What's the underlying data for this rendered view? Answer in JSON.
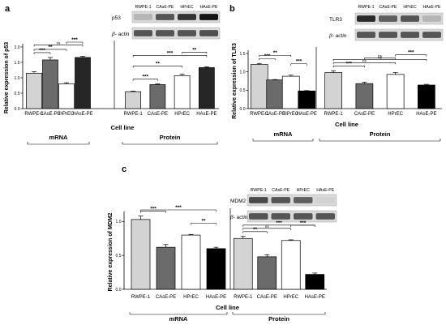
{
  "panel_labels": [
    "a",
    "b",
    "c"
  ],
  "blots": [
    {
      "lanes": [
        "RWPE-1",
        "CAsE-PE",
        "HPrEC",
        "HAsE-PE"
      ],
      "rows": [
        {
          "label": "p53",
          "intensity": [
            0.25,
            0.7,
            0.85,
            1.0
          ]
        },
        {
          "label": "β- actin",
          "intensity": [
            0.7,
            0.7,
            0.7,
            0.72
          ]
        }
      ]
    },
    {
      "lanes": [
        "RWPE-1",
        "CAsE-PE",
        "HPrEC",
        "HAsE-PE"
      ],
      "rows": [
        {
          "label": "TLR3",
          "intensity": [
            0.9,
            0.65,
            0.7,
            0.25
          ]
        },
        {
          "label": "β- actin",
          "intensity": [
            0.7,
            0.7,
            0.7,
            0.7
          ]
        }
      ]
    },
    {
      "lanes": [
        "RWPE-1",
        "CAsE-PE",
        "HPrEC",
        "HAsE-PE"
      ],
      "rows": [
        {
          "label": "MDM2",
          "intensity": [
            0.75,
            0.7,
            0.65,
            0.12
          ]
        },
        {
          "label": "β- actin",
          "intensity": [
            0.7,
            0.7,
            0.7,
            0.7
          ]
        }
      ]
    }
  ],
  "chart_data": [
    {
      "type": "bar",
      "title": "",
      "ylabel": "Relative expression of p53",
      "xlabel": "Cell line",
      "ylim": [
        0,
        2.0
      ],
      "yticks": [
        0.0,
        0.5,
        1.0,
        1.5,
        2.0
      ],
      "groups": [
        {
          "name": "mRNA",
          "categories": [
            "RWPE-1",
            "CAsE-PE",
            "HPrEC",
            "HAsE-PE"
          ],
          "values": [
            1.15,
            1.58,
            0.8,
            1.66
          ],
          "errors": [
            0.05,
            0.08,
            0.04,
            0.04
          ],
          "colors": [
            "#d3d3d3",
            "#6b6b6b",
            "#ffffff",
            "#262626"
          ],
          "sig": [
            {
              "from": 0,
              "to": 1,
              "label": "***"
            },
            {
              "from": 0,
              "to": 2,
              "label": "**"
            },
            {
              "from": 0,
              "to": 3,
              "label": "ns"
            },
            {
              "from": 2,
              "to": 3,
              "label": "***"
            }
          ]
        },
        {
          "name": "Protein",
          "categories": [
            "RWPE-1",
            "CAsE-PE",
            "HPrEC",
            "HAsE-PE"
          ],
          "values": [
            0.55,
            0.78,
            1.07,
            1.33
          ],
          "errors": [
            0.02,
            0.02,
            0.05,
            0.03
          ],
          "colors": [
            "#d3d3d3",
            "#6b6b6b",
            "#ffffff",
            "#262626"
          ],
          "sig": [
            {
              "from": 0,
              "to": 1,
              "label": "***"
            },
            {
              "from": 0,
              "to": 2,
              "label": "**"
            },
            {
              "from": 0,
              "to": 3,
              "label": "***"
            },
            {
              "from": 2,
              "to": 3,
              "label": "**"
            }
          ]
        }
      ]
    },
    {
      "type": "bar",
      "title": "",
      "ylabel": "Relative expression of TLR3",
      "xlabel": "Cell line",
      "ylim": [
        0,
        1.5
      ],
      "yticks": [
        0.0,
        0.5,
        1.0,
        1.5
      ],
      "groups": [
        {
          "name": "mRNA",
          "categories": [
            "RWPE-1",
            "CAsE-PE",
            "HPrEC",
            "HAsE-PE"
          ],
          "values": [
            1.2,
            0.78,
            0.88,
            0.48
          ],
          "errors": [
            0.03,
            0.01,
            0.03,
            0.01
          ],
          "colors": [
            "#d3d3d3",
            "#6b6b6b",
            "#ffffff",
            "#000000"
          ],
          "sig": [
            {
              "from": 0,
              "to": 1,
              "label": "***"
            },
            {
              "from": 0,
              "to": 2,
              "label": "**"
            },
            {
              "from": 2,
              "to": 3,
              "label": "***"
            }
          ]
        },
        {
          "name": "Protein",
          "categories": [
            "RWPE-1",
            "CAsE-PE",
            "HPrEC",
            "HAsE-PE"
          ],
          "values": [
            0.98,
            0.68,
            0.93,
            0.64
          ],
          "errors": [
            0.05,
            0.04,
            0.05,
            0.02
          ],
          "colors": [
            "#d3d3d3",
            "#6b6b6b",
            "#ffffff",
            "#000000"
          ],
          "sig": [
            {
              "from": 0,
              "to": 1,
              "label": "***"
            },
            {
              "from": 0,
              "to": 2,
              "label": "ns"
            },
            {
              "from": 0,
              "to": 3,
              "label": "ns"
            },
            {
              "from": 1,
              "to": 2,
              "label": "ns"
            },
            {
              "from": 2,
              "to": 3,
              "label": "***"
            }
          ]
        }
      ]
    },
    {
      "type": "bar",
      "title": "",
      "ylabel": "Relative expression of MDM2",
      "xlabel": "Cell line",
      "ylim": [
        0,
        1.1
      ],
      "yticks": [
        0.0,
        0.5,
        1.0
      ],
      "groups": [
        {
          "name": "mRNA",
          "categories": [
            "RWPE-1",
            "CAsE-PE",
            "HPrEC",
            "HAsE-PE"
          ],
          "values": [
            1.03,
            0.62,
            0.8,
            0.6
          ],
          "errors": [
            0.05,
            0.04,
            0.01,
            0.02
          ],
          "colors": [
            "#d3d3d3",
            "#6b6b6b",
            "#ffffff",
            "#000000"
          ],
          "sig": [
            {
              "from": 0,
              "to": 1,
              "label": "***"
            },
            {
              "from": 0,
              "to": 3,
              "label": "***"
            },
            {
              "from": 2,
              "to": 3,
              "label": "**"
            }
          ]
        },
        {
          "name": "Protein",
          "categories": [
            "RWPE-1",
            "CAsE-PE",
            "HPrEC",
            "HAsE-PE"
          ],
          "values": [
            0.75,
            0.48,
            0.72,
            0.22
          ],
          "errors": [
            0.03,
            0.03,
            0.01,
            0.02
          ],
          "colors": [
            "#d3d3d3",
            "#6b6b6b",
            "#ffffff",
            "#000000"
          ],
          "sig": [
            {
              "from": 0,
              "to": 1,
              "label": "**"
            },
            {
              "from": 0,
              "to": 2,
              "label": "ns"
            },
            {
              "from": 0,
              "to": 3,
              "label": "***"
            },
            {
              "from": 2,
              "to": 3,
              "label": "***"
            }
          ]
        }
      ]
    }
  ]
}
